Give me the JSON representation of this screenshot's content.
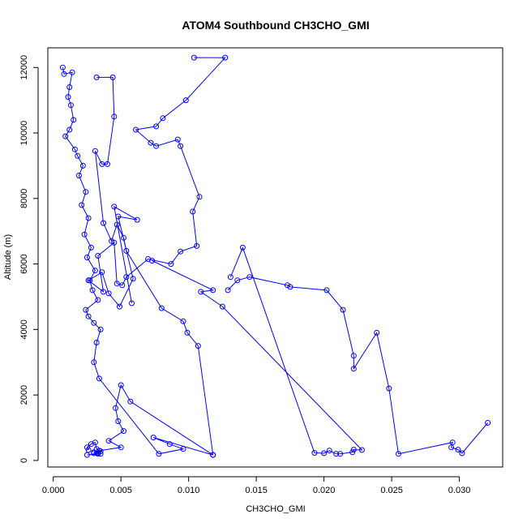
{
  "chart_data": {
    "type": "line",
    "title": "ATOM4 Southbound CH3CHO_GMI",
    "xlabel": "CH3CHO_GMI",
    "ylabel": "Altitude (m)",
    "xlim": [
      -0.0004,
      0.0332
    ],
    "ylim": [
      -200,
      12600
    ],
    "x_ticks": [
      0.0,
      0.005,
      0.01,
      0.015,
      0.02,
      0.025,
      0.03
    ],
    "x_tick_labels": [
      "0.000",
      "0.005",
      "0.010",
      "0.015",
      "0.020",
      "0.025",
      "0.030"
    ],
    "y_ticks": [
      0,
      2000,
      4000,
      6000,
      8000,
      10000,
      12000
    ],
    "y_tick_labels": [
      "0",
      "2000",
      "4000",
      "6000",
      "8000",
      "10000",
      "12000"
    ],
    "grid": false,
    "legend": "none",
    "series_color": "#0000ff",
    "series": [
      {
        "x": [
          0.0007,
          0.0008,
          0.0014,
          0.0012,
          0.0011,
          0.0013,
          0.0015,
          0.0012,
          0.0009,
          0.0016,
          0.0018,
          0.0022,
          0.0019,
          0.0024,
          0.0021,
          0.0026,
          0.0023,
          0.0028,
          0.0025,
          0.0031,
          0.0027,
          0.0029,
          0.0033,
          0.0024,
          0.0026,
          0.003,
          0.0035,
          0.0032,
          0.003,
          0.0034,
          0.0078,
          0.0096,
          0.0086,
          0.0074,
          0.0118,
          0.0057,
          0.005,
          0.0046,
          0.0048,
          0.0052,
          0.0041,
          0.005,
          0.0034,
          0.003,
          0.0033,
          0.0025,
          0.0035,
          0.0033,
          0.003,
          0.0035,
          0.0032,
          0.0031,
          0.0028,
          0.0025,
          0.0026
        ],
        "y": [
          12000,
          11800,
          11850,
          11400,
          11100,
          10850,
          10400,
          10100,
          9900,
          9500,
          9300,
          9000,
          8700,
          8200,
          7800,
          7400,
          6900,
          6500,
          6200,
          5800,
          5500,
          5200,
          4900,
          4600,
          4400,
          4200,
          4000,
          3600,
          3000,
          2500,
          200,
          350,
          500,
          700,
          170,
          1800,
          2300,
          1600,
          1200,
          900,
          600,
          400,
          300,
          220,
          200,
          170,
          200,
          230,
          250,
          280,
          350,
          550,
          500,
          400,
          320
        ]
      },
      {
        "x": [
          0.0104,
          0.0127,
          0.0098,
          0.0081,
          0.0076,
          0.0061,
          0.0072,
          0.0076,
          0.0092,
          0.0094,
          0.0108,
          0.0103,
          0.0106,
          0.0094,
          0.0087,
          0.007,
          0.0054,
          0.0051,
          0.0047,
          0.0045,
          0.0033,
          0.0037,
          0.0026,
          0.0036,
          0.0041,
          0.0049,
          0.0059,
          0.0048,
          0.0062,
          0.0045,
          0.0058
        ],
        "y": [
          12300,
          12300,
          11000,
          10450,
          10200,
          10100,
          9700,
          9600,
          9800,
          9600,
          8050,
          7600,
          6550,
          6380,
          6000,
          6150,
          5600,
          5350,
          5400,
          6650,
          6250,
          5150,
          5500,
          5750,
          5100,
          4700,
          5550,
          7450,
          7350,
          7750,
          4800
        ]
      },
      {
        "x": [
          0.0032,
          0.0044,
          0.0045,
          0.004,
          0.0036,
          0.0031,
          0.0037,
          0.0043,
          0.0047,
          0.0052,
          0.0054,
          0.008,
          0.0096,
          0.0099,
          0.0107,
          0.0118
        ],
        "y": [
          11700,
          11700,
          10500,
          9050,
          9050,
          9450,
          7250,
          6700,
          7200,
          6800,
          6400,
          4650,
          4250,
          3900,
          3500,
          170
        ]
      },
      {
        "x": [
          0.0129,
          0.0136,
          0.0145,
          0.0173,
          0.0175,
          0.0202,
          0.0214,
          0.0222,
          0.0222,
          0.0239,
          0.0248,
          0.0255,
          0.0295,
          0.0294,
          0.0299,
          0.0302,
          0.0321
        ],
        "y": [
          5200,
          5500,
          5600,
          5350,
          5300,
          5200,
          4600,
          3200,
          2800,
          3900,
          2200,
          200,
          550,
          400,
          330,
          220,
          1150
        ]
      },
      {
        "x": [
          0.0131,
          0.014,
          0.0193,
          0.02,
          0.0204,
          0.0209,
          0.0212,
          0.0221,
          0.0222,
          0.0228,
          0.0125,
          0.0109,
          0.0118,
          0.0073
        ],
        "y": [
          5600,
          6500,
          230,
          220,
          300,
          200,
          200,
          250,
          330,
          320,
          4700,
          5150,
          5200,
          6100
        ]
      }
    ]
  }
}
